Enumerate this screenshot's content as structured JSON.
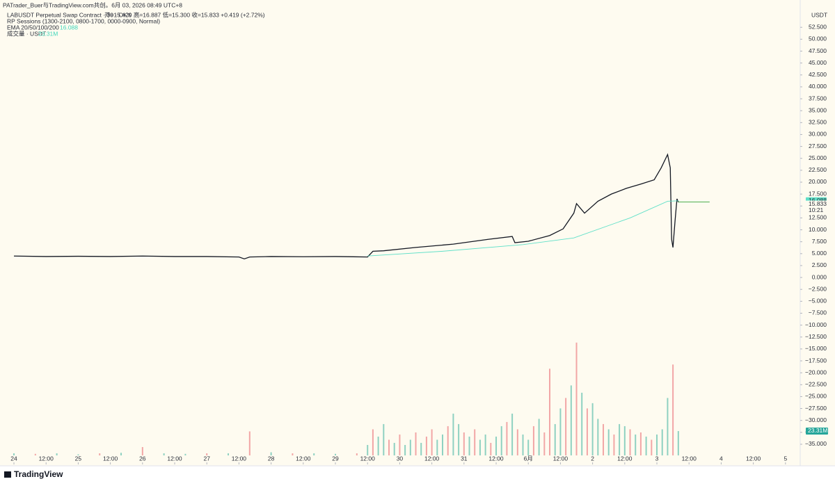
{
  "chart_data": {
    "type": "line",
    "credit": "PATrader_Buer与TradingView.com共创。6月 03, 2026 08:49 UTC+8",
    "title": "LABUSDT Perpetual Swap Contract · 30 · OKX",
    "ohlc": "开=15.429  高=16.887  低=15.300  收=15.833  +0.419 (+2.72%)",
    "annotations": [
      "RP Sessions (1300-2100, 0800-1700, 0000-0900, Normal)",
      "EMA 20/50/100/200",
      "成交量 · USDT"
    ],
    "axis_unit": "USDT",
    "brand": "TradingView",
    "ema_last": 16.088,
    "close_last": 15.833,
    "countdown": "10:21",
    "volume_last": {
      "value": 23.31,
      "label": "23.31M"
    },
    "xlim": [
      -5.2,
      293.5
    ],
    "xticks": [
      {
        "value": 0,
        "label": "24"
      },
      {
        "value": 12,
        "label": "12:00"
      },
      {
        "value": 24,
        "label": "25"
      },
      {
        "value": 36,
        "label": "12:00"
      },
      {
        "value": 48,
        "label": "26"
      },
      {
        "value": 60,
        "label": "12:00"
      },
      {
        "value": 72,
        "label": "27"
      },
      {
        "value": 84,
        "label": "12:00"
      },
      {
        "value": 96,
        "label": "28"
      },
      {
        "value": 108,
        "label": "12:00"
      },
      {
        "value": 120,
        "label": "29"
      },
      {
        "value": 132,
        "label": "12:00"
      },
      {
        "value": 144,
        "label": "30"
      },
      {
        "value": 156,
        "label": "12:00"
      },
      {
        "value": 168,
        "label": "31"
      },
      {
        "value": 180,
        "label": "12:00"
      },
      {
        "value": 192,
        "label": "6月"
      },
      {
        "value": 204,
        "label": "12:00"
      },
      {
        "value": 216,
        "label": "2"
      },
      {
        "value": 228,
        "label": "12:00"
      },
      {
        "value": 240,
        "label": "3"
      },
      {
        "value": 252,
        "label": "12:00"
      },
      {
        "value": 264,
        "label": "4"
      },
      {
        "value": 276,
        "label": "12:00"
      },
      {
        "value": 288,
        "label": "5"
      }
    ],
    "ylim": [
      -38.8,
      55.6
    ],
    "yticks": [
      {
        "value": 52.5,
        "label": "52.500"
      },
      {
        "value": 50,
        "label": "50.000"
      },
      {
        "value": 47.5,
        "label": "47.500"
      },
      {
        "value": 45,
        "label": "45.000"
      },
      {
        "value": 42.5,
        "label": "42.500"
      },
      {
        "value": 40,
        "label": "40.000"
      },
      {
        "value": 37.5,
        "label": "37.500"
      },
      {
        "value": 35,
        "label": "35.000"
      },
      {
        "value": 32.5,
        "label": "32.500"
      },
      {
        "value": 30,
        "label": "30.000"
      },
      {
        "value": 27.5,
        "label": "27.500"
      },
      {
        "value": 25,
        "label": "25.000"
      },
      {
        "value": 22.5,
        "label": "22.500"
      },
      {
        "value": 20,
        "label": "20.000"
      },
      {
        "value": 17.5,
        "label": "17.500"
      },
      {
        "value": 15,
        "label": "15.000"
      },
      {
        "value": 12.5,
        "label": "12.500"
      },
      {
        "value": 10,
        "label": "10.000"
      },
      {
        "value": 7.5,
        "label": "7.500"
      },
      {
        "value": 5,
        "label": "5.000"
      },
      {
        "value": 2.5,
        "label": "2.500"
      },
      {
        "value": 0,
        "label": "0.000"
      },
      {
        "value": -2.5,
        "label": "−2.500"
      },
      {
        "value": -5,
        "label": "−5.000"
      },
      {
        "value": -7.5,
        "label": "−7.500"
      },
      {
        "value": -10,
        "label": "−10.000"
      },
      {
        "value": -12.5,
        "label": "−12.500"
      },
      {
        "value": -15,
        "label": "−15.000"
      },
      {
        "value": -17.5,
        "label": "−17.500"
      },
      {
        "value": -20,
        "label": "−20.000"
      },
      {
        "value": -22.5,
        "label": "−22.500"
      },
      {
        "value": -25,
        "label": "−25.000"
      },
      {
        "value": -27.5,
        "label": "−27.500"
      },
      {
        "value": -30,
        "label": "−30.000"
      },
      {
        "value": -32.5,
        "label": "−32.500"
      },
      {
        "value": -35,
        "label": "−35.000"
      }
    ],
    "y2lim": [
      0,
      424
    ],
    "grid": false,
    "series": [
      {
        "color": "#131722",
        "x": [
          0,
          12,
          24,
          36,
          48,
          60,
          72,
          84,
          86,
          88,
          96,
          108,
          120,
          132,
          134,
          138,
          150,
          164,
          177,
          186,
          187,
          192,
          200,
          205,
          209,
          210,
          213,
          218,
          223,
          228.6,
          234,
          239,
          241.6,
          244,
          245,
          245.5,
          246,
          246.8,
          247.5,
          248
        ],
        "values": [
          4.5,
          4.4,
          4.45,
          4.4,
          4.5,
          4.4,
          4.4,
          4.3,
          3.9,
          4.3,
          4.4,
          4.35,
          4.4,
          4.3,
          5.5,
          5.6,
          6.3,
          7.0,
          8.0,
          8.6,
          7.3,
          7.6,
          8.8,
          10.2,
          13.5,
          15.5,
          13.5,
          16,
          17.5,
          18.7,
          19.6,
          20.5,
          23,
          25.8,
          23,
          8,
          6.3,
          12,
          16.5,
          15.8
        ]
      },
      {
        "color": "#5fe0c8",
        "x": [
          132,
          160,
          190,
          209,
          230,
          244,
          248
        ],
        "values": [
          4.5,
          5.5,
          6.9,
          8.3,
          12.5,
          16,
          16.088
        ]
      },
      {
        "type": "bar",
        "axis": "y2",
        "x": [
          0,
          8,
          16,
          24,
          32,
          40,
          48,
          56,
          64,
          72,
          80,
          88,
          96,
          104,
          112,
          120,
          128,
          132,
          134,
          136,
          138,
          140,
          142,
          144,
          146,
          148,
          150,
          152,
          154,
          156,
          158,
          160,
          162,
          164,
          166,
          168,
          170,
          172,
          174,
          176,
          178,
          180,
          182,
          184,
          186,
          188,
          190,
          192,
          194,
          196,
          198,
          200,
          202,
          204,
          206,
          208,
          210,
          212,
          214,
          216,
          218,
          220,
          222,
          224,
          226,
          228,
          230,
          232,
          234,
          236,
          238,
          240,
          242,
          244,
          246,
          248
        ],
        "values": [
          2,
          1.5,
          2,
          1,
          2,
          2.5,
          8,
          2,
          1.5,
          2,
          2,
          23,
          3,
          2,
          2,
          1.5,
          2,
          10,
          25,
          18,
          30,
          15,
          12,
          20,
          10,
          15,
          22,
          12,
          18,
          25,
          15,
          20,
          28,
          40,
          30,
          22,
          18,
          25,
          15,
          20,
          12,
          18,
          28,
          32,
          40,
          25,
          20,
          15,
          28,
          35,
          22,
          83,
          30,
          45,
          55,
          67,
          108,
          60,
          45,
          50,
          35,
          30,
          25,
          20,
          30,
          28,
          25,
          20,
          22,
          18,
          15,
          20,
          25,
          55,
          87,
          23.31
        ],
        "colors": [
          "#8ed1c1",
          "#f2a6a6",
          "#8ed1c1",
          "#8ed1c1",
          "#f2a6a6",
          "#8ed1c1",
          "#f2a6a6",
          "#8ed1c1",
          "#8ed1c1",
          "#f2a6a6",
          "#8ed1c1",
          "#f2a6a6",
          "#8ed1c1",
          "#f2a6a6",
          "#8ed1c1",
          "#8ed1c1",
          "#f2a6a6",
          "#8ed1c1",
          "#f2a6a6",
          "#8ed1c1",
          "#8ed1c1",
          "#f2a6a6",
          "#8ed1c1",
          "#f2a6a6",
          "#8ed1c1",
          "#8ed1c1",
          "#f2a6a6",
          "#8ed1c1",
          "#f2a6a6",
          "#f2a6a6",
          "#8ed1c1",
          "#8ed1c1",
          "#f2a6a6",
          "#8ed1c1",
          "#8ed1c1",
          "#f2a6a6",
          "#8ed1c1",
          "#f2a6a6",
          "#8ed1c1",
          "#8ed1c1",
          "#f2a6a6",
          "#8ed1c1",
          "#8ed1c1",
          "#f2a6a6",
          "#8ed1c1",
          "#f2a6a6",
          "#8ed1c1",
          "#8ed1c1",
          "#f2a6a6",
          "#8ed1c1",
          "#f2a6a6",
          "#f2a6a6",
          "#8ed1c1",
          "#8ed1c1",
          "#f2a6a6",
          "#8ed1c1",
          "#f2a6a6",
          "#8ed1c1",
          "#f2a6a6",
          "#8ed1c1",
          "#8ed1c1",
          "#f2a6a6",
          "#8ed1c1",
          "#f2a6a6",
          "#8ed1c1",
          "#8ed1c1",
          "#f2a6a6",
          "#8ed1c1",
          "#f2a6a6",
          "#8ed1c1",
          "#f2a6a6",
          "#8ed1c1",
          "#8ed1c1",
          "#8ed1c1",
          "#f2a6a6",
          "#8ed1c1"
        ]
      }
    ]
  }
}
